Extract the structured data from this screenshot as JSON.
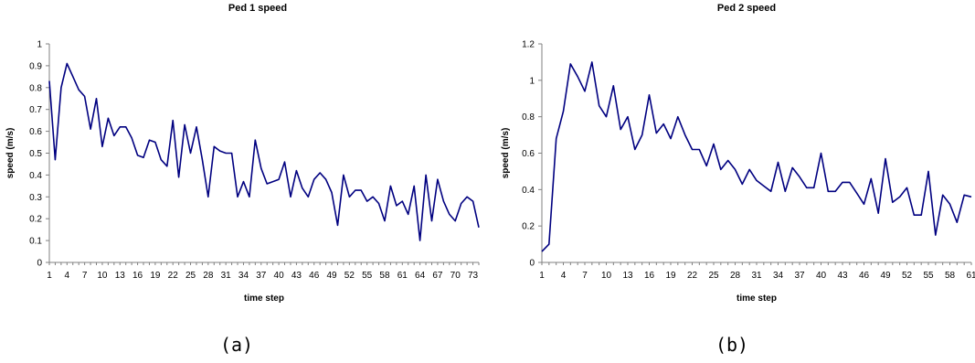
{
  "chart_data": [
    {
      "type": "line",
      "title": "Ped 1 speed",
      "xlabel": "time step",
      "ylabel": "speed (m/s)",
      "ylim": [
        0,
        1
      ],
      "yticks": [
        "0",
        "0.1",
        "0.2",
        "0.3",
        "0.4",
        "0.5",
        "0.6",
        "0.7",
        "0.8",
        "0.9",
        "1"
      ],
      "xtick_labels": [
        "1",
        "4",
        "7",
        "10",
        "13",
        "16",
        "19",
        "22",
        "25",
        "28",
        "31",
        "34",
        "37",
        "40",
        "43",
        "46",
        "49",
        "52",
        "55",
        "58",
        "61",
        "64",
        "67",
        "70",
        "73"
      ],
      "grid": false,
      "caption": "(a)",
      "series": [
        {
          "x": [
            1,
            2,
            3,
            4,
            5,
            6,
            7,
            8,
            9,
            10,
            11,
            12,
            13,
            14,
            15,
            16,
            17,
            18,
            19,
            20,
            21,
            22,
            23,
            24,
            25,
            26,
            27,
            28,
            29,
            30,
            31,
            32,
            33,
            34,
            35,
            36,
            37,
            38,
            39,
            40,
            41,
            42,
            43,
            44,
            45,
            46,
            47,
            48,
            49,
            50,
            51,
            52,
            53,
            54,
            55,
            56,
            57,
            58,
            59,
            60,
            61,
            62,
            63,
            64,
            65,
            66,
            67,
            68,
            69,
            70,
            71,
            72,
            73,
            74
          ],
          "values": [
            0.83,
            0.47,
            0.8,
            0.91,
            0.85,
            0.79,
            0.76,
            0.61,
            0.75,
            0.53,
            0.66,
            0.58,
            0.62,
            0.62,
            0.57,
            0.49,
            0.48,
            0.56,
            0.55,
            0.47,
            0.44,
            0.65,
            0.39,
            0.63,
            0.5,
            0.62,
            0.47,
            0.3,
            0.53,
            0.51,
            0.5,
            0.5,
            0.3,
            0.37,
            0.3,
            0.56,
            0.43,
            0.36,
            0.37,
            0.38,
            0.46,
            0.3,
            0.42,
            0.34,
            0.3,
            0.38,
            0.41,
            0.38,
            0.32,
            0.17,
            0.4,
            0.3,
            0.33,
            0.33,
            0.28,
            0.3,
            0.27,
            0.19,
            0.35,
            0.26,
            0.28,
            0.22,
            0.35,
            0.1,
            0.4,
            0.19,
            0.38,
            0.28,
            0.22,
            0.19,
            0.27,
            0.3,
            0.28,
            0.16
          ]
        }
      ]
    },
    {
      "type": "line",
      "title": "Ped 2 speed",
      "xlabel": "time step",
      "ylabel": "speed (m/s)",
      "ylim": [
        0,
        1.2
      ],
      "yticks": [
        "0",
        "0.2",
        "0.4",
        "0.6",
        "0.8",
        "1",
        "1.2"
      ],
      "xtick_labels": [
        "1",
        "4",
        "7",
        "10",
        "13",
        "16",
        "19",
        "22",
        "25",
        "28",
        "31",
        "34",
        "37",
        "40",
        "43",
        "46",
        "49",
        "52",
        "55",
        "58",
        "61"
      ],
      "grid": false,
      "caption": "(b)",
      "series": [
        {
          "x": [
            1,
            2,
            3,
            4,
            5,
            6,
            7,
            8,
            9,
            10,
            11,
            12,
            13,
            14,
            15,
            16,
            17,
            18,
            19,
            20,
            21,
            22,
            23,
            24,
            25,
            26,
            27,
            28,
            29,
            30,
            31,
            32,
            33,
            34,
            35,
            36,
            37,
            38,
            39,
            40,
            41,
            42,
            43,
            44,
            45,
            46,
            47,
            48,
            49,
            50,
            51,
            52,
            53,
            54,
            55,
            56,
            57,
            58,
            59,
            60,
            61
          ],
          "values": [
            0.06,
            0.1,
            0.68,
            0.83,
            1.09,
            1.02,
            0.94,
            1.1,
            0.86,
            0.8,
            0.97,
            0.73,
            0.8,
            0.62,
            0.7,
            0.92,
            0.71,
            0.76,
            0.68,
            0.8,
            0.7,
            0.62,
            0.62,
            0.53,
            0.65,
            0.51,
            0.56,
            0.51,
            0.43,
            0.51,
            0.45,
            0.42,
            0.39,
            0.55,
            0.39,
            0.52,
            0.47,
            0.41,
            0.41,
            0.6,
            0.39,
            0.39,
            0.44,
            0.44,
            0.38,
            0.32,
            0.46,
            0.27,
            0.57,
            0.33,
            0.36,
            0.41,
            0.26,
            0.26,
            0.5,
            0.15,
            0.37,
            0.32,
            0.22,
            0.37,
            0.36
          ]
        }
      ]
    }
  ]
}
